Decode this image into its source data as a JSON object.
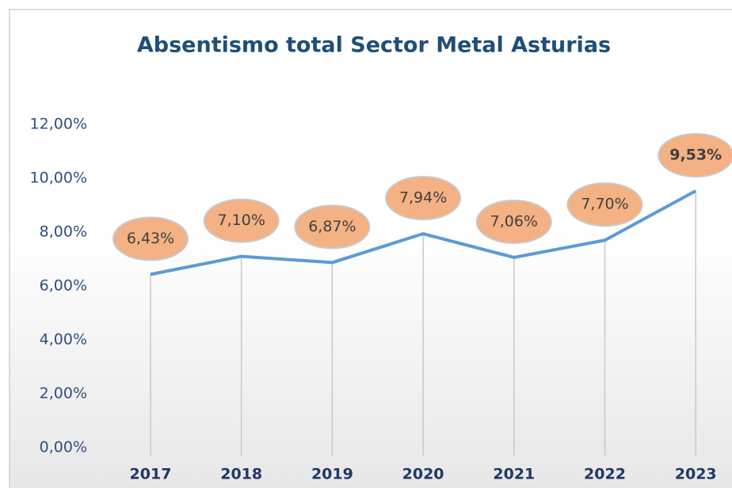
{
  "chart_data": {
    "type": "line",
    "title": "Absentismo total Sector Metal Asturias",
    "categories": [
      "2017",
      "2018",
      "2019",
      "2020",
      "2021",
      "2022",
      "2023"
    ],
    "values": [
      6.43,
      7.1,
      6.87,
      7.94,
      7.06,
      7.7,
      9.53
    ],
    "value_labels": [
      "6,43%",
      "7,10%",
      "6,87%",
      "7,94%",
      "7,06%",
      "7,70%",
      "9,53%"
    ],
    "color": "#5b9bd5",
    "label_color": "#f4b183",
    "ylim": [
      0,
      12
    ],
    "yticks": [
      {
        "value": 0,
        "label": "0,00%"
      },
      {
        "value": 2,
        "label": "2,00%"
      },
      {
        "value": 4,
        "label": "4,00%"
      },
      {
        "value": 6,
        "label": "6,00%"
      },
      {
        "value": 8,
        "label": "8,00%"
      },
      {
        "value": 10,
        "label": "10,00%"
      },
      {
        "value": 12,
        "label": "12,00%"
      }
    ]
  }
}
